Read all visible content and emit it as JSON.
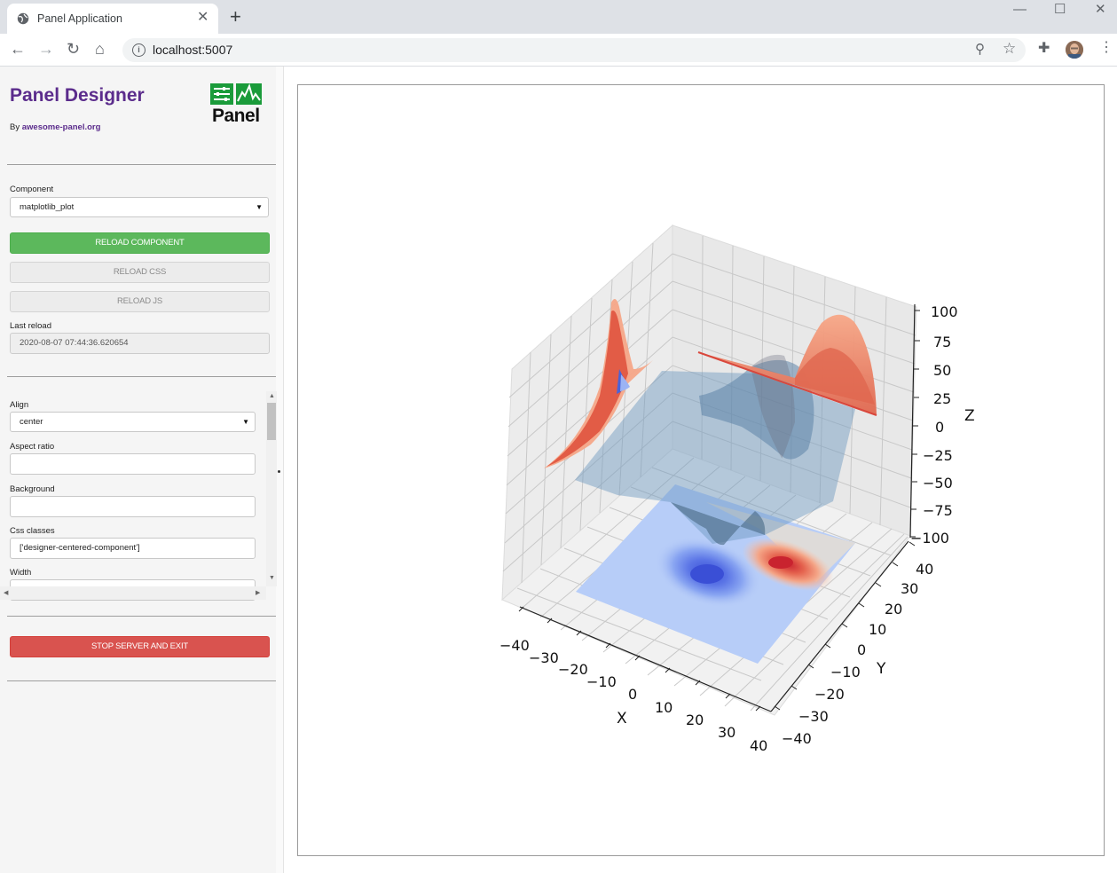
{
  "browser": {
    "tab_title": "Panel Application",
    "tab_close": "✕",
    "new_tab": "+",
    "url": "localhost:5007",
    "info_glyph": "i",
    "back": "←",
    "forward": "→",
    "reload": "↻",
    "home": "⌂",
    "zoom": "⚲",
    "star": "☆",
    "extensions": "✚",
    "menu": "⋮",
    "minimize": "—",
    "maximize": "☐",
    "close": "✕"
  },
  "sidebar": {
    "title": "Panel Designer",
    "byline_prefix": "By ",
    "byline_link": "awesome-panel.org",
    "logo_text": "Panel",
    "component_label": "Component",
    "component_value": "matplotlib_plot",
    "reload_component": "RELOAD COMPONENT",
    "reload_css": "RELOAD CSS",
    "reload_js": "RELOAD JS",
    "last_reload_label": "Last reload",
    "last_reload_value": "2020-08-07 07:44:36.620654",
    "params": {
      "align_label": "Align",
      "align_value": "center",
      "aspect_ratio_label": "Aspect ratio",
      "aspect_ratio_value": "",
      "background_label": "Background",
      "background_value": "",
      "css_classes_label": "Css classes",
      "css_classes_value": "['designer-centered-component']",
      "width_label": "Width"
    },
    "stop_server": "STOP SERVER AND EXIT",
    "caret": "▼"
  },
  "colors": {
    "title_purple": "#5b2c8c",
    "green_button": "#5cb85c",
    "red_button": "#d9534f",
    "panel_logo_green": "#1a9b3a"
  },
  "chart_data": {
    "type": "surface3d",
    "title": "",
    "xlabel": "X",
    "ylabel": "Y",
    "zlabel": "Z",
    "xlim": [
      -40,
      40
    ],
    "ylim": [
      -40,
      40
    ],
    "zlim": [
      -100,
      100
    ],
    "x_ticks": [
      "−40",
      "−30",
      "−20",
      "−10",
      "0",
      "10",
      "20",
      "30",
      "40"
    ],
    "y_ticks": [
      "−40",
      "−30",
      "−20",
      "−10",
      "0",
      "10",
      "20",
      "30",
      "40"
    ],
    "z_ticks": [
      "100",
      "75",
      "50",
      "25",
      "0",
      "−25",
      "−50",
      "−75",
      "−100"
    ],
    "surface_color": "steelblue",
    "contour_colormap": "coolwarm",
    "grid": true
  }
}
